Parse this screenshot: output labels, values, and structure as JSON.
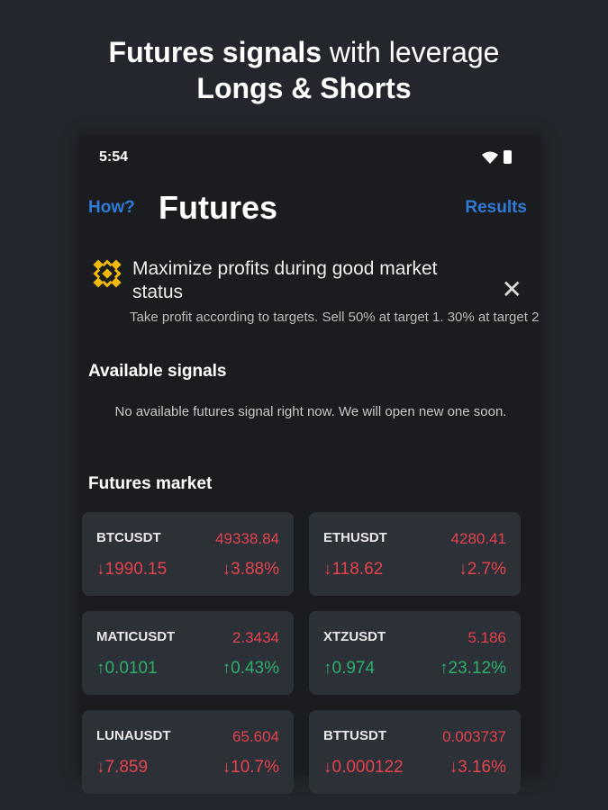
{
  "headline": {
    "bold": "Futures signals",
    "rest": " with leverage",
    "line2": "Longs & Shorts"
  },
  "status": {
    "time": "5:54"
  },
  "header": {
    "how": "How?",
    "title": "Futures",
    "results": "Results"
  },
  "banner": {
    "title": "Maximize profits during good market status",
    "subtitle": "Take profit according to targets. Sell 50% at target 1. 30% at target 2",
    "icon": "binance-logo-icon",
    "icon_color": "#f0b90b"
  },
  "signals": {
    "heading": "Available signals",
    "empty": "No available futures signal right now. We will open new one soon."
  },
  "market": {
    "heading": "Futures market",
    "items": [
      {
        "symbol": "BTCUSDT",
        "price": "49338.84",
        "change": "↓1990.15",
        "percent": "↓3.88%",
        "dir": "down"
      },
      {
        "symbol": "ETHUSDT",
        "price": "4280.41",
        "change": "↓118.62",
        "percent": "↓2.7%",
        "dir": "down"
      },
      {
        "symbol": "MATICUSDT",
        "price": "2.3434",
        "change": "↑0.0101",
        "percent": "↑0.43%",
        "dir": "up"
      },
      {
        "symbol": "XTZUSDT",
        "price": "5.186",
        "change": "↑0.974",
        "percent": "↑23.12%",
        "dir": "up"
      },
      {
        "symbol": "LUNAUSDT",
        "price": "65.604",
        "change": "↓7.859",
        "percent": "↓10.7%",
        "dir": "down"
      },
      {
        "symbol": "BTTUSDT",
        "price": "0.003737",
        "change": "↓0.000122",
        "percent": "↓3.16%",
        "dir": "down"
      }
    ]
  },
  "colors": {
    "accent": "#2f7ad6",
    "down": "#e5424d",
    "up": "#2fae6c"
  }
}
